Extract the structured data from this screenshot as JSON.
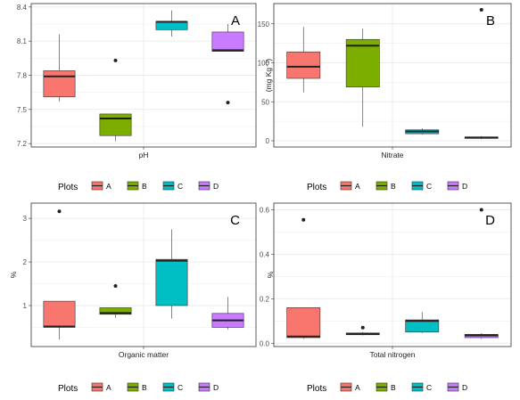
{
  "colors": {
    "A": "#F8766D",
    "B": "#7CAE00",
    "C": "#00BFC4",
    "D": "#C77CFF",
    "panel_border": "#333333",
    "grid": "#ebebeb",
    "median": "#222222"
  },
  "legend": {
    "title": "Plots",
    "labels": [
      "A",
      "B",
      "C",
      "D"
    ],
    "placement": "bottom"
  },
  "chart_data": [
    {
      "type": "boxplot",
      "panel_letter": "A",
      "xlabel": "pH",
      "ylabel": "",
      "ylim": [
        7.17,
        8.43
      ],
      "y_ticks": [
        7.2,
        7.5,
        7.8,
        8.1,
        8.4
      ],
      "y_tick_labels": [
        "7.2",
        "7.5",
        "7.8",
        "8.1",
        "8.4"
      ],
      "series": [
        {
          "name": "A",
          "min": 7.57,
          "q1": 7.61,
          "median": 7.79,
          "q3": 7.84,
          "max": 8.16,
          "outliers": []
        },
        {
          "name": "B",
          "min": 7.22,
          "q1": 7.27,
          "median": 7.42,
          "q3": 7.46,
          "max": 7.46,
          "outliers": [
            7.93
          ]
        },
        {
          "name": "C",
          "min": 8.14,
          "q1": 8.2,
          "median": 8.27,
          "q3": 8.27,
          "max": 8.37,
          "outliers": []
        },
        {
          "name": "D",
          "min": 8.01,
          "q1": 8.01,
          "median": 8.02,
          "q3": 8.18,
          "max": 8.25,
          "outliers": [
            7.56
          ]
        }
      ]
    },
    {
      "type": "boxplot",
      "panel_letter": "B",
      "xlabel": "Nitrate",
      "ylabel": "(mg Kg⁻¹)",
      "ylim": [
        -8,
        176
      ],
      "y_ticks": [
        0,
        50,
        100,
        150
      ],
      "y_tick_labels": [
        "0",
        "50",
        "100",
        "150"
      ],
      "series": [
        {
          "name": "A",
          "min": 62,
          "q1": 80,
          "median": 95,
          "q3": 114,
          "max": 146,
          "outliers": []
        },
        {
          "name": "B",
          "min": 18,
          "q1": 69,
          "median": 122,
          "q3": 130,
          "max": 144,
          "outliers": []
        },
        {
          "name": "C",
          "min": 8,
          "q1": 9,
          "median": 12,
          "q3": 14,
          "max": 16,
          "outliers": []
        },
        {
          "name": "D",
          "min": 2,
          "q1": 3,
          "median": 4,
          "q3": 5,
          "max": 6,
          "outliers": [
            168
          ]
        }
      ]
    },
    {
      "type": "boxplot",
      "panel_letter": "C",
      "xlabel": "Organic matter",
      "ylabel": "%",
      "ylim": [
        0.06,
        3.35
      ],
      "y_ticks": [
        1,
        2,
        3
      ],
      "y_tick_labels": [
        "1",
        "2",
        "3"
      ],
      "series": [
        {
          "name": "A",
          "min": 0.22,
          "q1": 0.5,
          "median": 0.52,
          "q3": 1.1,
          "max": 1.1,
          "outliers": [
            3.16
          ]
        },
        {
          "name": "B",
          "min": 0.72,
          "q1": 0.8,
          "median": 0.83,
          "q3": 0.95,
          "max": 0.95,
          "outliers": [
            1.45
          ]
        },
        {
          "name": "C",
          "min": 0.7,
          "q1": 1.0,
          "median": 2.03,
          "q3": 2.06,
          "max": 2.75,
          "outliers": []
        },
        {
          "name": "D",
          "min": 0.45,
          "q1": 0.5,
          "median": 0.66,
          "q3": 0.82,
          "max": 1.2,
          "outliers": []
        }
      ]
    },
    {
      "type": "boxplot",
      "panel_letter": "D",
      "xlabel": "Total nitrogen",
      "ylabel": "%",
      "ylim": [
        -0.015,
        0.63
      ],
      "y_ticks": [
        0.0,
        0.2,
        0.4,
        0.6
      ],
      "y_tick_labels": [
        "0.0",
        "0.2",
        "0.4",
        "0.6"
      ],
      "series": [
        {
          "name": "A",
          "min": 0.02,
          "q1": 0.025,
          "median": 0.03,
          "q3": 0.16,
          "max": 0.16,
          "outliers": [
            0.555
          ]
        },
        {
          "name": "B",
          "min": 0.035,
          "q1": 0.038,
          "median": 0.042,
          "q3": 0.046,
          "max": 0.05,
          "outliers": [
            0.07
          ]
        },
        {
          "name": "C",
          "min": 0.045,
          "q1": 0.05,
          "median": 0.1,
          "q3": 0.105,
          "max": 0.14,
          "outliers": []
        },
        {
          "name": "D",
          "min": 0.02,
          "q1": 0.025,
          "median": 0.035,
          "q3": 0.04,
          "max": 0.045,
          "outliers": [
            0.6
          ]
        }
      ]
    }
  ]
}
